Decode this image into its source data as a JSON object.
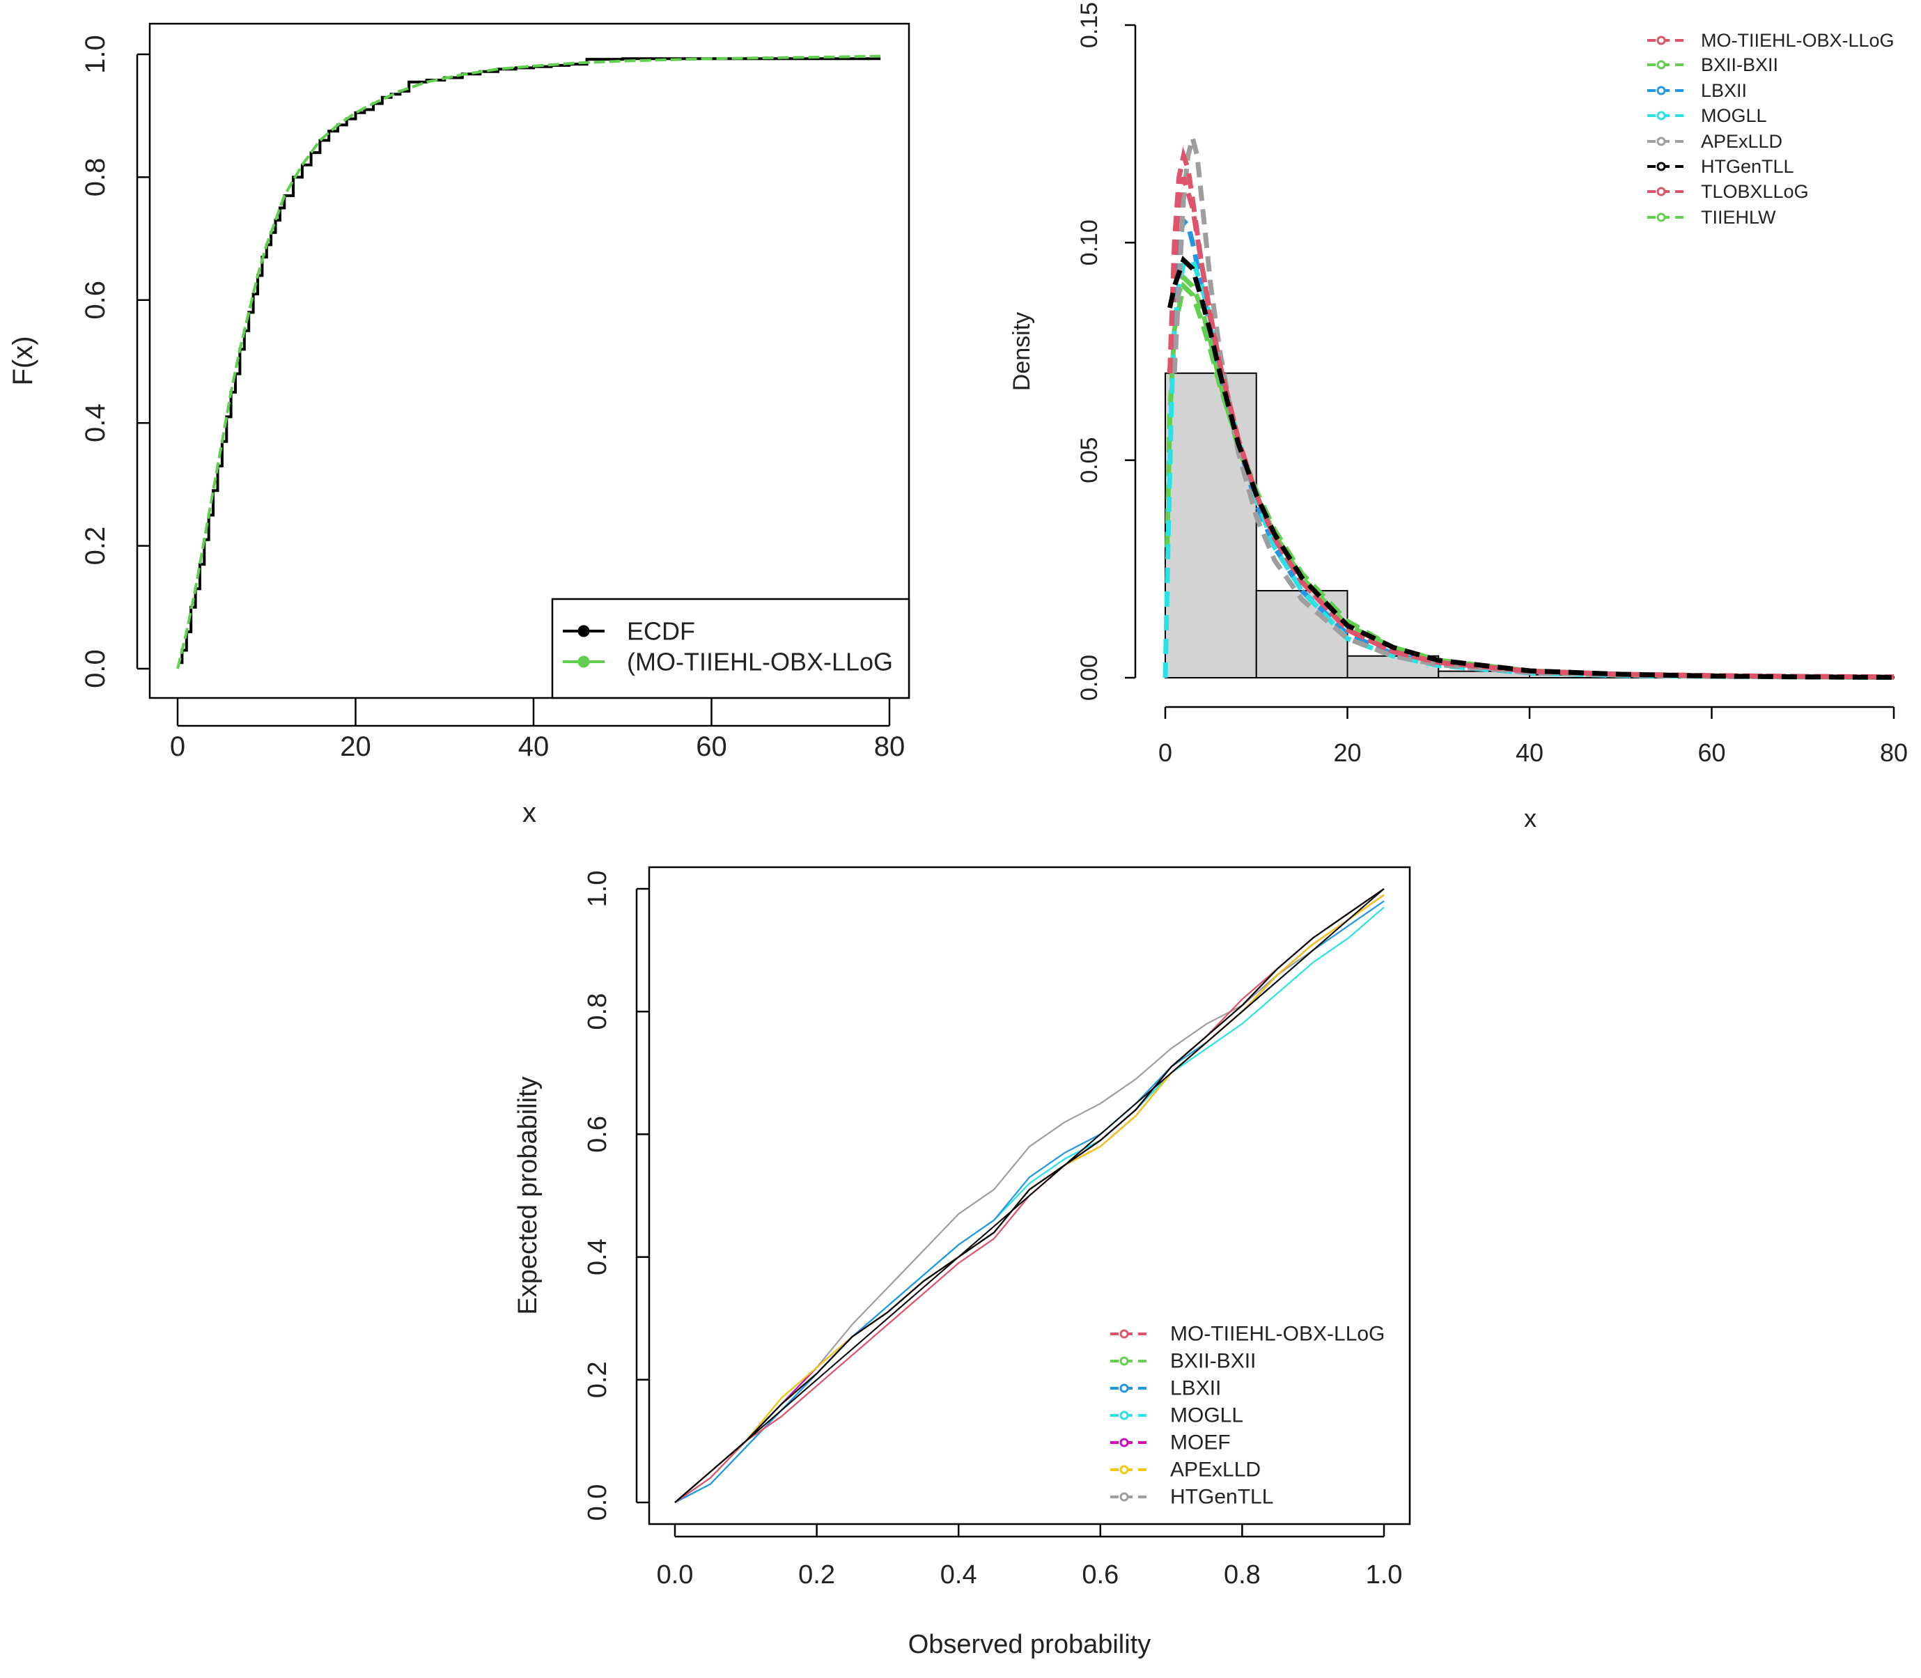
{
  "chart_data": [
    {
      "id": "ecdf",
      "type": "line",
      "title": "",
      "xlabel": "x",
      "ylabel": "F(x)",
      "xlim": [
        -3,
        82
      ],
      "ylim": [
        -0.04,
        1.02
      ],
      "xticks": [
        0,
        20,
        40,
        60,
        80
      ],
      "xtick_labels": [
        "0",
        "20",
        "40",
        "60",
        "80"
      ],
      "yticks": [
        0.0,
        0.2,
        0.4,
        0.6,
        0.8,
        1.0
      ],
      "ytick_labels": [
        "0.0",
        "0.2",
        "0.4",
        "0.6",
        "0.8",
        "1.0"
      ],
      "grid": false,
      "legend_position": "bottom-right",
      "series": [
        {
          "name": "ECDF",
          "color": "#000000",
          "style": "step",
          "x": [
            0.1,
            0.5,
            1,
            1.5,
            2,
            2.5,
            3,
            3.5,
            4,
            4.5,
            5,
            5.5,
            6,
            6.5,
            7,
            7.5,
            8,
            8.5,
            9,
            9.5,
            10,
            10.5,
            11,
            11.5,
            12,
            13,
            14,
            15,
            16,
            17,
            18,
            19,
            20,
            21,
            22,
            23,
            24,
            25,
            26,
            28,
            30,
            32,
            34,
            36,
            38,
            40,
            42,
            44,
            46,
            50,
            55,
            60,
            65,
            70,
            75,
            79
          ],
          "y": [
            0.01,
            0.03,
            0.06,
            0.1,
            0.13,
            0.17,
            0.21,
            0.25,
            0.29,
            0.33,
            0.37,
            0.41,
            0.45,
            0.48,
            0.52,
            0.55,
            0.58,
            0.61,
            0.64,
            0.67,
            0.69,
            0.71,
            0.73,
            0.75,
            0.77,
            0.8,
            0.82,
            0.84,
            0.86,
            0.875,
            0.885,
            0.895,
            0.905,
            0.91,
            0.92,
            0.93,
            0.935,
            0.94,
            0.955,
            0.958,
            0.962,
            0.968,
            0.972,
            0.976,
            0.978,
            0.98,
            0.982,
            0.984,
            0.992,
            0.993,
            0.993,
            0.993,
            0.993,
            0.993,
            0.993,
            0.993
          ]
        },
        {
          "name": "(MO-TIIEHL-OBX-LLoG",
          "color": "#61D04F",
          "style": "dashed",
          "x": [
            0,
            1,
            2,
            3,
            4,
            5,
            6,
            7,
            8,
            9,
            10,
            12,
            14,
            16,
            18,
            20,
            22,
            25,
            28,
            32,
            36,
            40,
            45,
            50,
            55,
            60,
            65,
            70,
            75,
            79
          ],
          "y": [
            0.0,
            0.06,
            0.13,
            0.21,
            0.29,
            0.37,
            0.45,
            0.52,
            0.58,
            0.64,
            0.69,
            0.77,
            0.82,
            0.86,
            0.885,
            0.905,
            0.92,
            0.94,
            0.955,
            0.967,
            0.976,
            0.981,
            0.986,
            0.989,
            0.991,
            0.993,
            0.994,
            0.995,
            0.996,
            0.997
          ]
        }
      ]
    },
    {
      "id": "density",
      "type": "line",
      "title": "",
      "xlabel": "x",
      "ylabel": "Density",
      "xlim": [
        0,
        80
      ],
      "ylim": [
        0,
        0.15
      ],
      "xticks": [
        0,
        20,
        40,
        60,
        80
      ],
      "xtick_labels": [
        "0",
        "20",
        "40",
        "60",
        "80"
      ],
      "yticks": [
        0.0,
        0.05,
        0.1,
        0.15
      ],
      "ytick_labels": [
        "0.00",
        "0.05",
        "0.10",
        "0.15"
      ],
      "grid": false,
      "legend_position": "top-right",
      "histogram": {
        "breaks": [
          0,
          10,
          20,
          30,
          40,
          50,
          60,
          70,
          80
        ],
        "density": [
          0.07,
          0.02,
          0.005,
          0.0015,
          0.0007,
          0.0004,
          0.0002,
          0.0002
        ],
        "fill": "#D3D3D3"
      },
      "series": [
        {
          "name": "MO-TIIEHL-OBX-LLoG",
          "color": "#DF536B",
          "x": [
            0.5,
            1,
            1.5,
            2,
            2.5,
            3,
            4,
            5,
            6,
            8,
            10,
            12,
            15,
            20,
            25,
            30,
            40,
            50,
            60,
            70,
            80
          ],
          "y": [
            0.07,
            0.1,
            0.115,
            0.12,
            0.117,
            0.11,
            0.095,
            0.083,
            0.072,
            0.055,
            0.042,
            0.032,
            0.022,
            0.011,
            0.006,
            0.0035,
            0.0015,
            0.0008,
            0.0005,
            0.0003,
            0.0002
          ]
        },
        {
          "name": "BXII-BXII",
          "color": "#61D04F",
          "x": [
            0.2,
            0.5,
            1,
            2,
            3,
            4,
            5,
            6,
            8,
            10,
            12,
            15,
            20,
            25,
            30,
            40,
            50,
            60,
            70,
            80
          ],
          "y": [
            0.03,
            0.06,
            0.08,
            0.09,
            0.088,
            0.082,
            0.075,
            0.067,
            0.054,
            0.043,
            0.034,
            0.024,
            0.013,
            0.007,
            0.004,
            0.0015,
            0.0007,
            0.0004,
            0.0002,
            0.0001
          ]
        },
        {
          "name": "LBXII",
          "color": "#2297E6",
          "x": [
            0.5,
            1,
            1.5,
            2,
            2.5,
            3,
            4,
            5,
            6,
            8,
            10,
            12,
            15,
            20,
            25,
            30,
            40,
            50,
            60,
            70,
            80
          ],
          "y": [
            0.07,
            0.09,
            0.1,
            0.105,
            0.104,
            0.1,
            0.09,
            0.08,
            0.07,
            0.054,
            0.04,
            0.03,
            0.02,
            0.01,
            0.0055,
            0.003,
            0.0012,
            0.0006,
            0.0003,
            0.0002,
            0.0001
          ]
        },
        {
          "name": "MOGLL",
          "color": "#28E2E5",
          "x": [
            0,
            0.3,
            0.7,
            1,
            1.5,
            2,
            3,
            4,
            5,
            6,
            8,
            10,
            12,
            15,
            20,
            25,
            30,
            40,
            50,
            60,
            70,
            80
          ],
          "y": [
            0,
            0.03,
            0.065,
            0.08,
            0.09,
            0.095,
            0.096,
            0.09,
            0.082,
            0.072,
            0.055,
            0.041,
            0.03,
            0.02,
            0.009,
            0.005,
            0.0028,
            0.0011,
            0.0005,
            0.0003,
            0.0002,
            0.0001
          ]
        },
        {
          "name": "APExLLD",
          "color": "#9E9E9E",
          "x": [
            1,
            1.5,
            2,
            2.5,
            3,
            3.5,
            4,
            5,
            6,
            8,
            10,
            12,
            15,
            20,
            25,
            30,
            40,
            50,
            60,
            70,
            80
          ],
          "y": [
            0.07,
            0.09,
            0.11,
            0.12,
            0.124,
            0.12,
            0.11,
            0.09,
            0.075,
            0.052,
            0.037,
            0.027,
            0.018,
            0.009,
            0.005,
            0.003,
            0.0012,
            0.0006,
            0.0003,
            0.0002,
            0.0001
          ]
        },
        {
          "name": "HTGenTLL",
          "color": "#000000",
          "x": [
            0.5,
            1,
            2,
            3,
            4,
            5,
            6,
            8,
            10,
            12,
            15,
            20,
            25,
            30,
            40,
            50,
            60,
            70,
            80
          ],
          "y": [
            0.085,
            0.09,
            0.096,
            0.094,
            0.087,
            0.079,
            0.07,
            0.054,
            0.042,
            0.033,
            0.023,
            0.012,
            0.007,
            0.004,
            0.0016,
            0.0008,
            0.0004,
            0.0002,
            0.0001
          ]
        },
        {
          "name": "TLOBXLLoG",
          "color": "#DF536B",
          "x": [
            0.5,
            1,
            1.5,
            2,
            3,
            4,
            5,
            6,
            8,
            10,
            12,
            15,
            20,
            25,
            30,
            40,
            50,
            60,
            70,
            80
          ],
          "y": [
            0.07,
            0.095,
            0.11,
            0.115,
            0.108,
            0.095,
            0.082,
            0.072,
            0.055,
            0.042,
            0.032,
            0.022,
            0.011,
            0.006,
            0.0035,
            0.0015,
            0.0008,
            0.0005,
            0.0003,
            0.0002
          ]
        },
        {
          "name": "TIIEHLW",
          "color": "#61D04F",
          "x": [
            0.5,
            1,
            2,
            3,
            4,
            5,
            6,
            8,
            10,
            12,
            15,
            20,
            25,
            30,
            40,
            50,
            60,
            70,
            80
          ],
          "y": [
            0.07,
            0.085,
            0.092,
            0.09,
            0.085,
            0.077,
            0.068,
            0.053,
            0.042,
            0.033,
            0.023,
            0.012,
            0.007,
            0.004,
            0.0016,
            0.0008,
            0.0004,
            0.0002,
            0.0001
          ]
        }
      ]
    },
    {
      "id": "pp",
      "type": "line",
      "title": "",
      "xlabel": "Observed probability",
      "ylabel": "Expected probability",
      "xlim": [
        -0.04,
        1.04
      ],
      "ylim": [
        -0.04,
        1.04
      ],
      "xticks": [
        0.0,
        0.2,
        0.4,
        0.6,
        0.8,
        1.0
      ],
      "xtick_labels": [
        "0.0",
        "0.2",
        "0.4",
        "0.6",
        "0.8",
        "1.0"
      ],
      "yticks": [
        0.0,
        0.2,
        0.4,
        0.6,
        0.8,
        1.0
      ],
      "ytick_labels": [
        "0.0",
        "0.2",
        "0.4",
        "0.6",
        "0.8",
        "1.0"
      ],
      "grid": false,
      "legend_position": "bottom-right",
      "x": [
        0.0,
        0.05,
        0.1,
        0.15,
        0.2,
        0.25,
        0.3,
        0.35,
        0.4,
        0.45,
        0.5,
        0.55,
        0.6,
        0.65,
        0.7,
        0.75,
        0.8,
        0.85,
        0.9,
        0.95,
        1.0
      ],
      "series": [
        {
          "name": "MO-TIIEHL-OBX-LLoG",
          "color": "#DF536B",
          "y": [
            0.0,
            0.04,
            0.1,
            0.14,
            0.19,
            0.24,
            0.29,
            0.34,
            0.39,
            0.43,
            0.5,
            0.55,
            0.59,
            0.64,
            0.71,
            0.76,
            0.82,
            0.87,
            0.92,
            0.96,
            1.0
          ]
        },
        {
          "name": "BXII-BXII",
          "color": "#61D04F",
          "y": [
            0.0,
            0.05,
            0.1,
            0.17,
            0.22,
            0.27,
            0.31,
            0.36,
            0.4,
            0.44,
            0.51,
            0.55,
            0.58,
            0.63,
            0.7,
            0.75,
            0.8,
            0.86,
            0.91,
            0.95,
            0.99
          ]
        },
        {
          "name": "LBXII",
          "color": "#2297E6",
          "y": [
            0.0,
            0.03,
            0.09,
            0.15,
            0.21,
            0.27,
            0.32,
            0.37,
            0.42,
            0.46,
            0.53,
            0.57,
            0.6,
            0.65,
            0.71,
            0.75,
            0.8,
            0.85,
            0.9,
            0.94,
            0.98
          ]
        },
        {
          "name": "MOGLL",
          "color": "#28E2E5",
          "y": [
            0.0,
            0.03,
            0.09,
            0.15,
            0.21,
            0.27,
            0.32,
            0.37,
            0.42,
            0.46,
            0.52,
            0.56,
            0.59,
            0.64,
            0.7,
            0.74,
            0.78,
            0.83,
            0.88,
            0.92,
            0.97
          ]
        },
        {
          "name": "MOEF",
          "color": "#CD0BBC",
          "y": [
            0.0,
            0.05,
            0.1,
            0.16,
            0.22,
            0.27,
            0.31,
            0.36,
            0.4,
            0.44,
            0.51,
            0.55,
            0.58,
            0.63,
            0.7,
            0.75,
            0.8,
            0.86,
            0.91,
            0.95,
            0.99
          ]
        },
        {
          "name": "APExLLD",
          "color": "#F5C710",
          "y": [
            0.0,
            0.05,
            0.1,
            0.17,
            0.22,
            0.27,
            0.31,
            0.36,
            0.4,
            0.44,
            0.51,
            0.55,
            0.58,
            0.63,
            0.7,
            0.75,
            0.8,
            0.86,
            0.91,
            0.95,
            0.99
          ]
        },
        {
          "name": "HTGenTLL",
          "color": "#9E9E9E",
          "y": [
            0.0,
            0.04,
            0.1,
            0.16,
            0.22,
            0.29,
            0.35,
            0.41,
            0.47,
            0.51,
            0.58,
            0.62,
            0.65,
            0.69,
            0.74,
            0.78,
            0.81,
            0.86,
            0.9,
            0.94,
            0.98
          ]
        },
        {
          "name": "",
          "color": "#000000",
          "y": [
            0.0,
            0.05,
            0.1,
            0.16,
            0.21,
            0.27,
            0.31,
            0.36,
            0.4,
            0.44,
            0.51,
            0.55,
            0.59,
            0.64,
            0.71,
            0.76,
            0.81,
            0.87,
            0.92,
            0.96,
            1.0
          ]
        }
      ]
    }
  ]
}
